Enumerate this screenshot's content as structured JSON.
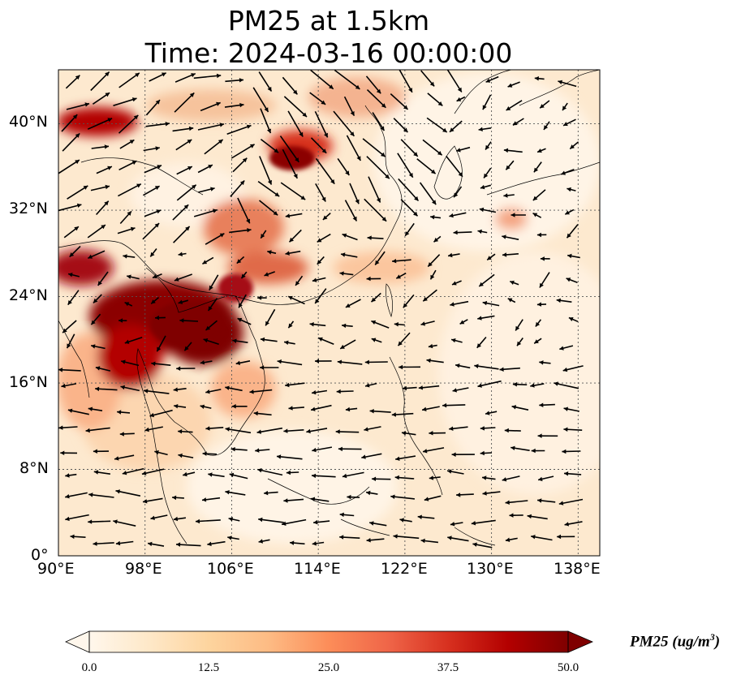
{
  "title": {
    "line1": "PM25 at 1.5km",
    "line2": "Time: 2024-03-16 00:00:00"
  },
  "map": {
    "lon_range": [
      90,
      140
    ],
    "lat_range": [
      0,
      45
    ],
    "lon_ticks": [
      "90°E",
      "98°E",
      "106°E",
      "114°E",
      "122°E",
      "130°E",
      "138°E"
    ],
    "lat_ticks": [
      "0°",
      "8°N",
      "16°N",
      "24°N",
      "32°N",
      "40°N"
    ],
    "gridlines": true
  },
  "colorbar": {
    "label": "PM25 (ug/m",
    "label_sup": "3",
    "label_close": ")",
    "ticks": [
      "0.0",
      "12.5",
      "25.0",
      "37.5",
      "50.0"
    ],
    "range": [
      0,
      50
    ],
    "colormap": "OrRd",
    "extend": "both",
    "colors": [
      "#fff7ec",
      "#fee8c8",
      "#fdd49e",
      "#fdbb84",
      "#fc8d59",
      "#ef6548",
      "#d7301f",
      "#b30000",
      "#7f0000"
    ]
  }
}
